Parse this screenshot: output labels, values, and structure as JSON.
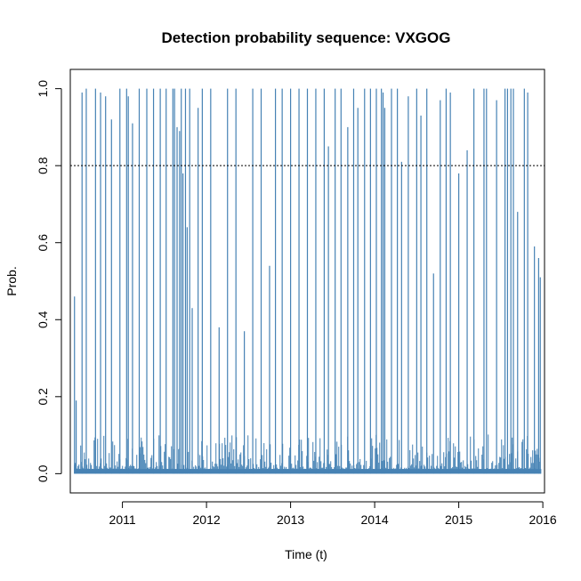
{
  "chart_data": {
    "type": "bar",
    "title": "Detection probability sequence: VXGOG",
    "xlabel": "Time (t)",
    "ylabel": "Prob.",
    "xlim": [
      2010.38,
      2016.02
    ],
    "ylim": [
      -0.05,
      1.05
    ],
    "x_ticks": [
      2011,
      2012,
      2013,
      2014,
      2015,
      2016
    ],
    "x_tick_labels": [
      "2011",
      "2012",
      "2013",
      "2014",
      "2015",
      "2016"
    ],
    "y_ticks": [
      0.0,
      0.2,
      0.4,
      0.6,
      0.8,
      1.0
    ],
    "y_tick_labels": [
      "0.0",
      "0.2",
      "0.4",
      "0.6",
      "0.8",
      "1.0"
    ],
    "threshold": 0.8,
    "bar_color": "#4682B4",
    "series": [
      {
        "x": [
          2010.43,
          2010.45,
          2010.52,
          2010.57,
          2010.68,
          2010.74,
          2010.8,
          2010.87,
          2010.97,
          2011.05,
          2011.07,
          2011.12,
          2011.2,
          2011.29,
          2011.37,
          2011.45,
          2011.52,
          2011.6,
          2011.62,
          2011.65,
          2011.68,
          2011.7,
          2011.72,
          2011.75,
          2011.77,
          2011.8,
          2011.83,
          2011.9,
          2011.95,
          2012.05,
          2012.15,
          2012.25,
          2012.35,
          2012.45,
          2012.55,
          2012.65,
          2012.75,
          2012.82,
          2012.9,
          2013.0,
          2013.1,
          2013.2,
          2013.3,
          2013.4,
          2013.45,
          2013.53,
          2013.6,
          2013.68,
          2013.75,
          2013.8,
          2013.88,
          2013.95,
          2014.02,
          2014.08,
          2014.1,
          2014.12,
          2014.2,
          2014.27,
          2014.32,
          2014.4,
          2014.5,
          2014.55,
          2014.62,
          2014.7,
          2014.78,
          2014.85,
          2014.9,
          2015.0,
          2015.1,
          2015.18,
          2015.3,
          2015.33,
          2015.45,
          2015.55,
          2015.58,
          2015.62,
          2015.65,
          2015.7,
          2015.78,
          2015.82,
          2015.9,
          2015.95,
          2015.97
        ],
        "values": [
          0.46,
          0.19,
          0.99,
          1.0,
          1.0,
          0.99,
          0.98,
          0.92,
          1.0,
          1.0,
          0.98,
          0.91,
          1.0,
          1.0,
          1.0,
          1.0,
          1.0,
          1.0,
          1.0,
          0.9,
          0.89,
          1.0,
          0.78,
          1.0,
          0.64,
          1.0,
          0.43,
          0.95,
          1.0,
          1.0,
          0.38,
          1.0,
          1.0,
          0.37,
          1.0,
          1.0,
          0.54,
          1.0,
          1.0,
          1.0,
          1.0,
          1.0,
          1.0,
          1.0,
          0.85,
          1.0,
          1.0,
          0.9,
          1.0,
          0.95,
          1.0,
          1.0,
          1.0,
          1.0,
          0.99,
          0.95,
          1.0,
          1.0,
          0.81,
          0.98,
          1.0,
          0.93,
          1.0,
          0.52,
          0.97,
          1.0,
          0.99,
          0.78,
          0.84,
          1.0,
          1.0,
          1.0,
          0.97,
          1.0,
          1.0,
          1.0,
          1.0,
          0.68,
          1.0,
          0.99,
          0.59,
          0.56,
          0.51
        ]
      }
    ]
  }
}
